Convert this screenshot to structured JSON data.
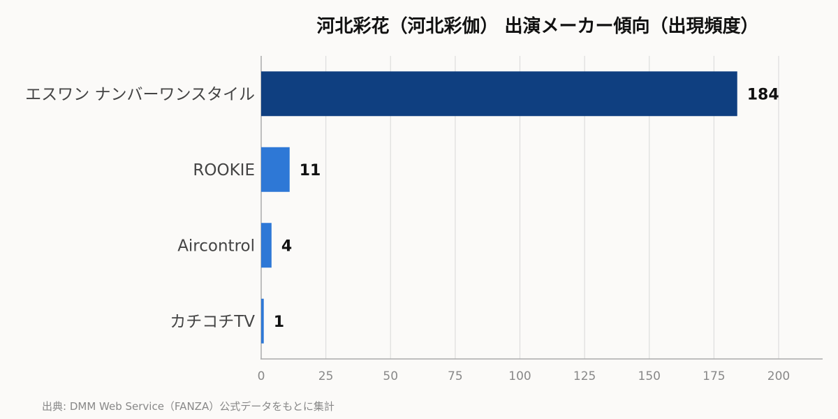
{
  "chart_data": {
    "type": "bar",
    "orientation": "horizontal",
    "title": "河北彩花（河北彩伽） 出演メーカー傾向（出現頻度）",
    "categories": [
      "エスワン ナンバーワンスタイル",
      "ROOKIE",
      "Aircontrol",
      "カチコチTV"
    ],
    "values": [
      184,
      11,
      4,
      1
    ],
    "value_labels": [
      "184",
      "11",
      "4",
      "1"
    ],
    "xlim": [
      0,
      218
    ],
    "xticks": [
      0,
      25,
      50,
      75,
      100,
      125,
      150,
      175,
      200
    ],
    "xtick_labels": [
      "0",
      "25",
      "50",
      "75",
      "100",
      "125",
      "150",
      "175",
      "200"
    ],
    "grid": true,
    "legend": "none",
    "colors": {
      "highlight": "#0f3f80",
      "bar": "#2e78d6",
      "grid": "#dddddd",
      "axis": "#aaaaaa"
    }
  },
  "source": "出典: DMM Web Service（FANZA）公式データをもとに集計"
}
